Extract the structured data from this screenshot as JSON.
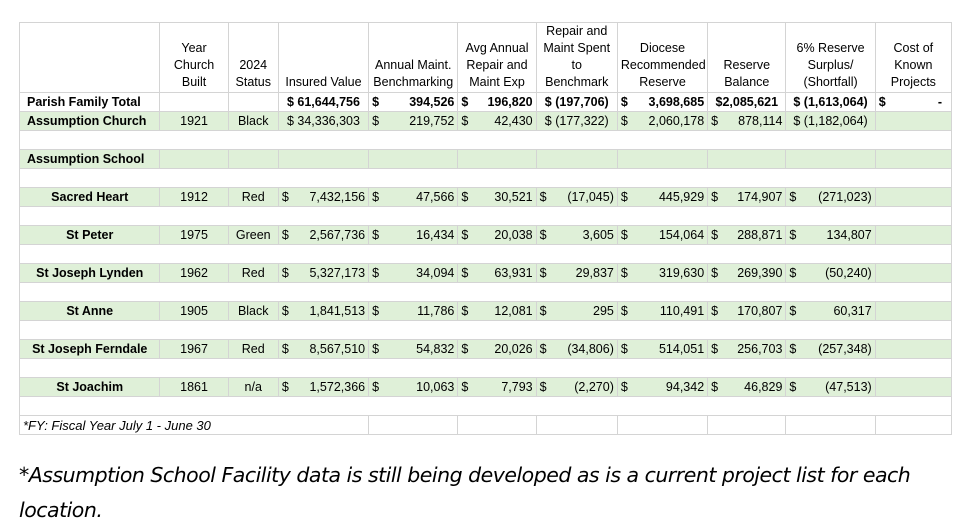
{
  "headers": {
    "parish": "",
    "year_built": "Year Church Built",
    "status": "2024 Status",
    "insured": "Insured Value",
    "annual_maint": "Annual Maint. Benchmarking",
    "avg_repair": "Avg Annual Repair and Maint Exp",
    "repair_spent": "Repair and Maint Spent to Benchmark",
    "diocese_reserve": "Diocese Recommended Reserve",
    "reserve_balance": "Reserve Balance",
    "surplus": "6% Reserve Surplus/ (Shortfall)",
    "cost_projects": "Cost of Known Projects"
  },
  "total_row": {
    "name": "Parish Family Total",
    "insured": "$ 61,644,756",
    "annual_sym": "$",
    "annual": "394,526",
    "avg_sym": "$",
    "avg": "196,820",
    "spent": "$ (197,706)",
    "diocese_sym": "$",
    "diocese": "3,698,685",
    "reserve": "$2,085,621",
    "surplus": "$ (1,613,064)",
    "cost_sym": "$",
    "cost": "-"
  },
  "assumption_church": {
    "name": "Assumption Church",
    "year": "1921",
    "status": "Black",
    "insured": "$ 34,336,303",
    "annual_sym": "$",
    "annual": "219,752",
    "avg_sym": "$",
    "avg": "42,430",
    "spent": "$ (177,322)",
    "diocese_sym": "$",
    "diocese": "2,060,178",
    "reserve_sym": "$",
    "reserve": "878,114",
    "surplus": "$ (1,182,064)"
  },
  "assumption_school": {
    "name": "Assumption School"
  },
  "churches": [
    {
      "name": "Sacred Heart",
      "year": "1912",
      "status": "Red",
      "insured": "7,432,156",
      "annual": "47,566",
      "avg": "30,521",
      "spent": "(17,045)",
      "diocese": "445,929",
      "reserve": "174,907",
      "surplus": "(271,023)"
    },
    {
      "name": "St Peter",
      "year": "1975",
      "status": "Green",
      "insured": "2,567,736",
      "annual": "16,434",
      "avg": "20,038",
      "spent": "3,605",
      "diocese": "154,064",
      "reserve": "288,871",
      "surplus": "134,807"
    },
    {
      "name": "St Joseph Lynden",
      "year": "1962",
      "status": "Red",
      "insured": "5,327,173",
      "annual": "34,094",
      "avg": "63,931",
      "spent": "29,837",
      "diocese": "319,630",
      "reserve": "269,390",
      "surplus": "(50,240)"
    },
    {
      "name": "St Anne",
      "year": "1905",
      "status": "Black",
      "insured": "1,841,513",
      "annual": "11,786",
      "avg": "12,081",
      "spent": "295",
      "diocese": "110,491",
      "reserve": "170,807",
      "surplus": "60,317"
    },
    {
      "name": "St Joseph Ferndale",
      "year": "1967",
      "status": "Red",
      "insured": "8,567,510",
      "annual": "54,832",
      "avg": "20,026",
      "spent": "(34,806)",
      "diocese": "514,051",
      "reserve": "256,703",
      "surplus": "(257,348)"
    },
    {
      "name": "St Joachim",
      "year": "1861",
      "status": "n/a",
      "insured": "1,572,366",
      "annual": "10,063",
      "avg": "7,793",
      "spent": "(2,270)",
      "diocese": "94,342",
      "reserve": "46,829",
      "surplus": "(47,513)"
    }
  ],
  "currency_symbol": "$",
  "fy_note": "*FY: Fiscal Year July 1 - June 30",
  "bottom_note": "*Assumption School Facility data is still being developed as is a current project list for each location.",
  "colors": {
    "band_green": "#dff0d8"
  }
}
